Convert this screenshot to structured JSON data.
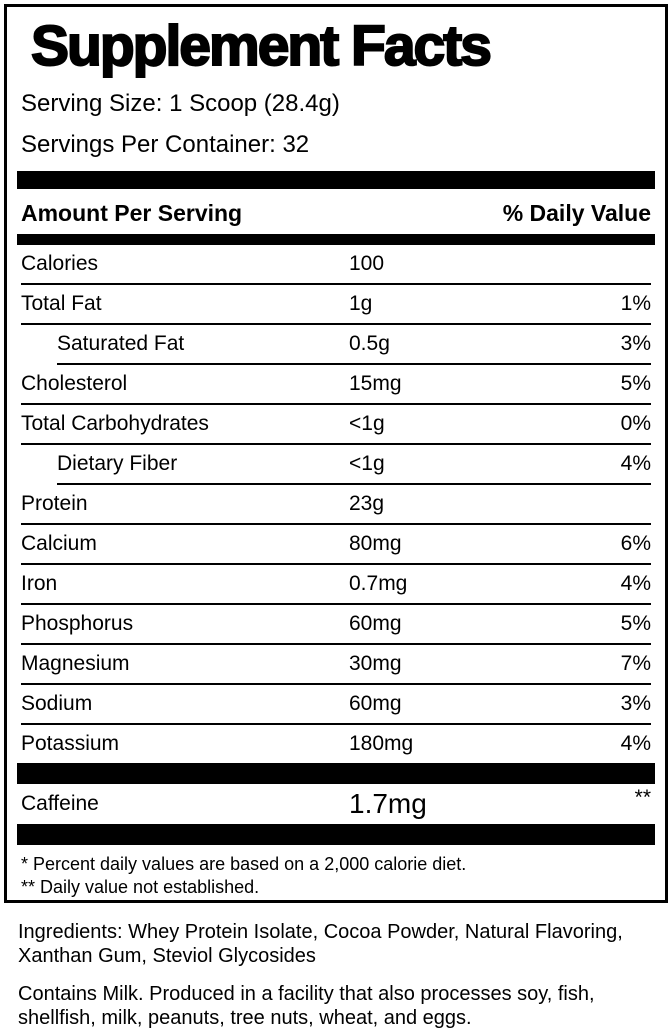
{
  "label": {
    "title": "Supplement Facts",
    "serving_size": "Serving Size: 1 Scoop (28.4g)",
    "servings_per_container": "Servings Per Container: 32",
    "header": {
      "amount_per_serving": "Amount Per Serving",
      "daily_value": "% Daily Value"
    },
    "rows": [
      {
        "name": "Calories",
        "amount": "100",
        "dv": "",
        "indent": false,
        "sep_after": "full"
      },
      {
        "name": "Total Fat",
        "amount": "1g",
        "dv": "1%",
        "indent": false,
        "sep_after": "full"
      },
      {
        "name": "Saturated Fat",
        "amount": "0.5g",
        "dv": "3%",
        "indent": true,
        "sep_after": "indent"
      },
      {
        "name": "Cholesterol",
        "amount": "15mg",
        "dv": "5%",
        "indent": false,
        "sep_after": "full"
      },
      {
        "name": "Total Carbohydrates",
        "amount": "<1g",
        "dv": "0%",
        "indent": false,
        "sep_after": "full"
      },
      {
        "name": "Dietary Fiber",
        "amount": "<1g",
        "dv": "4%",
        "indent": true,
        "sep_after": "indent"
      },
      {
        "name": "Protein",
        "amount": "23g",
        "dv": "",
        "indent": false,
        "sep_after": "full"
      },
      {
        "name": "Calcium",
        "amount": "80mg",
        "dv": "6%",
        "indent": false,
        "sep_after": "full"
      },
      {
        "name": "Iron",
        "amount": "0.7mg",
        "dv": "4%",
        "indent": false,
        "sep_after": "full"
      },
      {
        "name": "Phosphorus",
        "amount": "60mg",
        "dv": "5%",
        "indent": false,
        "sep_after": "full"
      },
      {
        "name": "Magnesium",
        "amount": "30mg",
        "dv": "7%",
        "indent": false,
        "sep_after": "full"
      },
      {
        "name": "Sodium",
        "amount": "60mg",
        "dv": "3%",
        "indent": false,
        "sep_after": "full"
      },
      {
        "name": "Potassium",
        "amount": "180mg",
        "dv": "4%",
        "indent": false,
        "sep_after": null
      }
    ],
    "caffeine": {
      "name": "Caffeine",
      "amount": "1.7mg",
      "dv": "**"
    },
    "footnotes": [
      "* Percent daily values are based on a 2,000 calorie diet.",
      "** Daily value not established."
    ]
  },
  "below": {
    "ingredients": "Ingredients: Whey Protein Isolate, Cocoa Powder, Natural Flavoring, Xanthan Gum, Steviol Glycosides",
    "allergen": "Contains Milk. Produced in a facility that also processes soy, fish, shellfish, milk, peanuts, tree nuts, wheat, and eggs."
  },
  "colors": {
    "text": "#000000",
    "background": "#ffffff",
    "bar": "#000000"
  }
}
